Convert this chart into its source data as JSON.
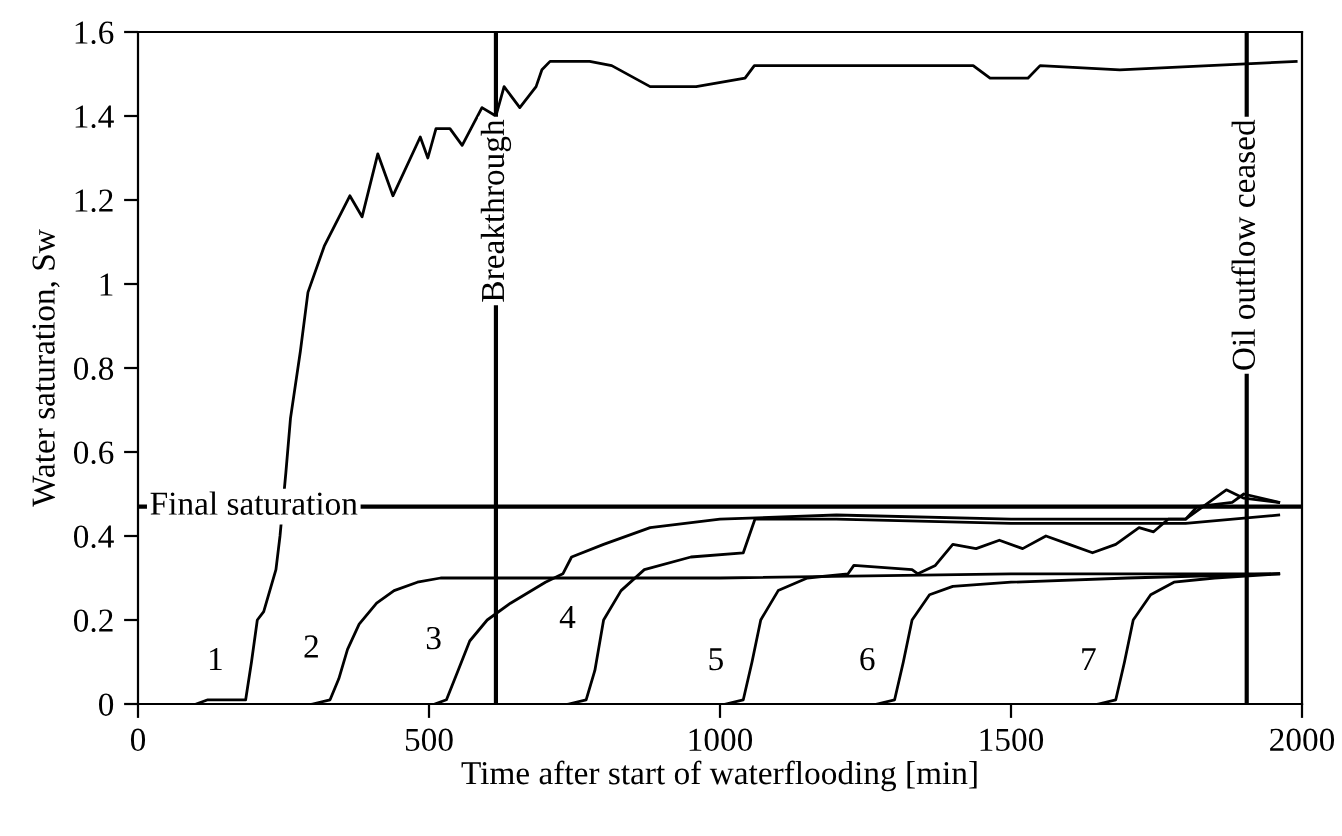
{
  "chart_data": {
    "type": "line",
    "xlabel": "Time after start of waterflooding [min]",
    "ylabel": "Water saturation, Sw",
    "xlim": [
      0,
      2000
    ],
    "ylim": [
      0,
      1.6
    ],
    "xticks": [
      0,
      500,
      1000,
      1500,
      2000
    ],
    "yticks": [
      0,
      0.2,
      0.4,
      0.6,
      0.8,
      1,
      1.2,
      1.4,
      1.6
    ],
    "grid": false,
    "marker": "none",
    "line_style": "solid",
    "series": [
      {
        "name": "1",
        "color": "#000000",
        "x": [
          100,
          120,
          185,
          195,
          205,
          216,
          237,
          244,
          254,
          262,
          279,
          292,
          320,
          364,
          385,
          412,
          438,
          485,
          498,
          512,
          536,
          557,
          591,
          615,
          629,
          656,
          684,
          694,
          708,
          776,
          814,
          880,
          959,
          1043,
          1059,
          1131,
          1435,
          1464,
          1529,
          1550,
          1687,
          1990
        ],
        "values": [
          0,
          0.01,
          0.01,
          0.1,
          0.2,
          0.22,
          0.32,
          0.4,
          0.55,
          0.68,
          0.84,
          0.98,
          1.09,
          1.21,
          1.16,
          1.31,
          1.21,
          1.35,
          1.3,
          1.37,
          1.37,
          1.33,
          1.42,
          1.4,
          1.47,
          1.42,
          1.47,
          1.51,
          1.53,
          1.53,
          1.52,
          1.47,
          1.47,
          1.49,
          1.52,
          1.52,
          1.52,
          1.49,
          1.49,
          1.52,
          1.51,
          1.53
        ]
      },
      {
        "name": "2",
        "color": "#000000",
        "x": [
          300,
          330,
          345,
          360,
          380,
          410,
          440,
          480,
          520,
          600,
          700,
          1000,
          1500,
          1960
        ],
        "values": [
          0,
          0.01,
          0.06,
          0.13,
          0.19,
          0.24,
          0.27,
          0.29,
          0.3,
          0.3,
          0.3,
          0.3,
          0.31,
          0.31
        ]
      },
      {
        "name": "3",
        "color": "#000000",
        "x": [
          510,
          530,
          550,
          570,
          600,
          640,
          700,
          730,
          745,
          800,
          880,
          1000,
          1200,
          1500,
          1800,
          1820,
          1880,
          1900,
          1960
        ],
        "values": [
          0,
          0.01,
          0.08,
          0.15,
          0.2,
          0.24,
          0.29,
          0.31,
          0.35,
          0.38,
          0.42,
          0.44,
          0.45,
          0.44,
          0.44,
          0.47,
          0.48,
          0.5,
          0.48
        ]
      },
      {
        "name": "4",
        "color": "#000000",
        "x": [
          740,
          770,
          785,
          800,
          830,
          870,
          950,
          1040,
          1060,
          1200,
          1500,
          1800,
          1960
        ],
        "values": [
          0,
          0.01,
          0.08,
          0.2,
          0.27,
          0.32,
          0.35,
          0.36,
          0.44,
          0.44,
          0.43,
          0.43,
          0.45
        ]
      },
      {
        "name": "5",
        "color": "#000000",
        "x": [
          1010,
          1040,
          1055,
          1070,
          1100,
          1150,
          1220,
          1230,
          1330,
          1340,
          1370,
          1400,
          1440,
          1480,
          1520,
          1560,
          1600,
          1640,
          1680,
          1720,
          1745,
          1770,
          1800,
          1840,
          1870,
          1900,
          1960
        ],
        "values": [
          0,
          0.01,
          0.1,
          0.2,
          0.27,
          0.3,
          0.31,
          0.33,
          0.32,
          0.31,
          0.33,
          0.38,
          0.37,
          0.39,
          0.37,
          0.4,
          0.38,
          0.36,
          0.38,
          0.42,
          0.41,
          0.44,
          0.44,
          0.48,
          0.51,
          0.49,
          0.48
        ]
      },
      {
        "name": "6",
        "color": "#000000",
        "x": [
          1270,
          1300,
          1315,
          1330,
          1360,
          1400,
          1500,
          1700,
          1960
        ],
        "values": [
          0,
          0.01,
          0.1,
          0.2,
          0.26,
          0.28,
          0.29,
          0.3,
          0.31
        ]
      },
      {
        "name": "7",
        "color": "#000000",
        "x": [
          1650,
          1680,
          1695,
          1710,
          1740,
          1780,
          1850,
          1960
        ],
        "values": [
          0,
          0.01,
          0.1,
          0.2,
          0.26,
          0.29,
          0.3,
          0.31
        ]
      }
    ],
    "ref_lines": [
      {
        "axis": "x",
        "value": 615,
        "label": "Breakthrough",
        "color": "#000000"
      },
      {
        "axis": "x",
        "value": 1905,
        "label": "Oil outflow ceased",
        "color": "#000000"
      },
      {
        "axis": "y",
        "value": 0.47,
        "label": "Final saturation",
        "color": "#000000"
      }
    ]
  }
}
